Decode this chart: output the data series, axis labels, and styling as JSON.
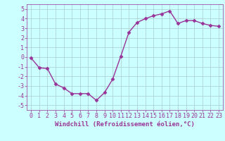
{
  "x": [
    0,
    1,
    2,
    3,
    4,
    5,
    6,
    7,
    8,
    9,
    10,
    11,
    12,
    13,
    14,
    15,
    16,
    17,
    18,
    19,
    20,
    21,
    22,
    23
  ],
  "y": [
    -0.1,
    -1.1,
    -1.2,
    -2.8,
    -3.2,
    -3.8,
    -3.8,
    -3.8,
    -4.5,
    -3.7,
    -2.3,
    0.1,
    2.6,
    3.6,
    4.0,
    4.3,
    4.5,
    4.8,
    3.5,
    3.8,
    3.8,
    3.5,
    3.3,
    3.2
  ],
  "line_color": "#993399",
  "marker": "D",
  "marker_size": 2.5,
  "bg_color": "#ccffff",
  "grid_color": "#aacccc",
  "xlabel": "Windchill (Refroidissement éolien,°C)",
  "xlabel_color": "#993399",
  "xlabel_fontsize": 6.5,
  "ylabel_ticks": [
    -5,
    -4,
    -3,
    -2,
    -1,
    0,
    1,
    2,
    3,
    4,
    5
  ],
  "xlim": [
    -0.5,
    23.5
  ],
  "ylim": [
    -5.5,
    5.5
  ],
  "tick_color": "#993399",
  "tick_fontsize": 6.0,
  "linewidth": 1.0,
  "figsize": [
    3.2,
    2.0
  ],
  "dpi": 100
}
